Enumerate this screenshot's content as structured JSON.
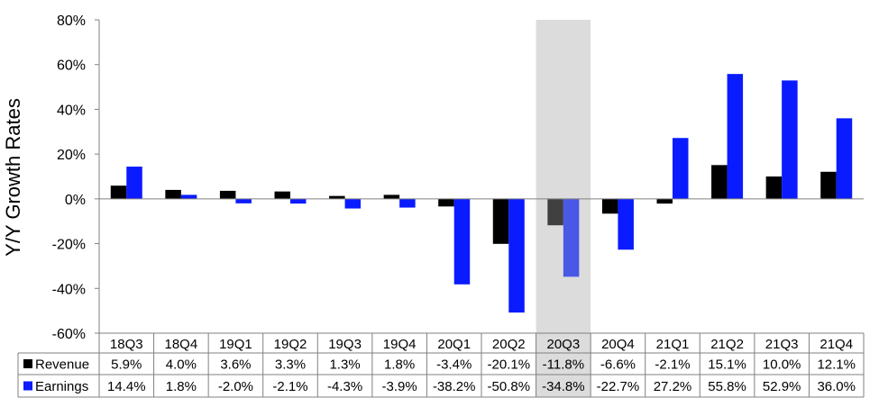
{
  "chart_data": {
    "type": "bar",
    "ylabel": "Y/Y Growth Rates",
    "ylim": [
      -60,
      80
    ],
    "ytick_step": 20,
    "ytick_labels": [
      "80%",
      "60%",
      "40%",
      "20%",
      "0%",
      "-20%",
      "-40%",
      "-60%"
    ],
    "categories": [
      "18Q3",
      "18Q4",
      "19Q1",
      "19Q2",
      "19Q3",
      "19Q4",
      "20Q1",
      "20Q2",
      "20Q3",
      "20Q4",
      "21Q1",
      "21Q2",
      "21Q3",
      "21Q4"
    ],
    "highlight_category": "20Q3",
    "series": [
      {
        "name": "Revenue",
        "color": "#000000",
        "highlight_color": "#404040",
        "values": [
          5.9,
          4.0,
          3.6,
          3.3,
          1.3,
          1.8,
          -3.4,
          -20.1,
          -11.8,
          -6.6,
          -2.1,
          15.1,
          10.0,
          12.1
        ],
        "labels": [
          "5.9%",
          "4.0%",
          "3.6%",
          "3.3%",
          "1.3%",
          "1.8%",
          "-3.4%",
          "-20.1%",
          "-11.8%",
          "-6.6%",
          "-2.1%",
          "15.1%",
          "10.0%",
          "12.1%"
        ]
      },
      {
        "name": "Earnings",
        "color": "#0a1bff",
        "highlight_color": "#4a58e6",
        "values": [
          14.4,
          1.8,
          -2.0,
          -2.1,
          -4.3,
          -3.9,
          -38.2,
          -50.8,
          -34.8,
          -22.7,
          27.2,
          55.8,
          52.9,
          36.0
        ],
        "labels": [
          "14.4%",
          "1.8%",
          "-2.0%",
          "-2.1%",
          "-4.3%",
          "-3.9%",
          "-38.2%",
          "-50.8%",
          "-34.8%",
          "-22.7%",
          "27.2%",
          "55.8%",
          "52.9%",
          "36.0%"
        ]
      }
    ],
    "grid": false,
    "legend": "data-table"
  }
}
